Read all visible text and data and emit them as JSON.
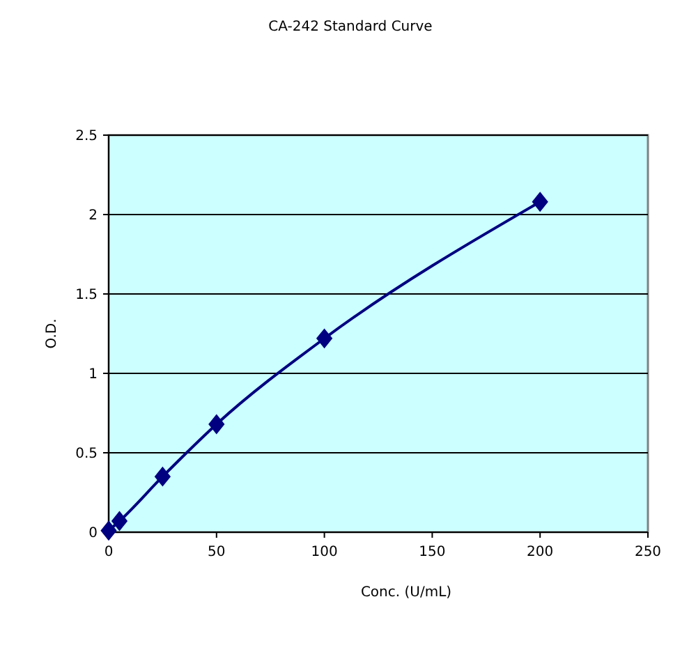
{
  "chart_data": {
    "type": "line",
    "title": "CA-242 Standard Curve",
    "xlabel": "Conc. (U/mL)",
    "ylabel": "O.D.",
    "x": [
      0,
      5,
      25,
      50,
      100,
      200
    ],
    "series": [
      {
        "color": "#000080",
        "values": [
          0.01,
          0.07,
          0.35,
          0.68,
          1.22,
          2.08
        ]
      }
    ],
    "xlim": [
      0,
      250
    ],
    "xticks": [
      0,
      50,
      100,
      150,
      200,
      250
    ],
    "ylim": [
      0,
      2.5
    ],
    "yticks": [
      0,
      0.5,
      1,
      1.5,
      2,
      2.5
    ],
    "grid": "y",
    "marker": "diamond",
    "line_style": "solid"
  }
}
